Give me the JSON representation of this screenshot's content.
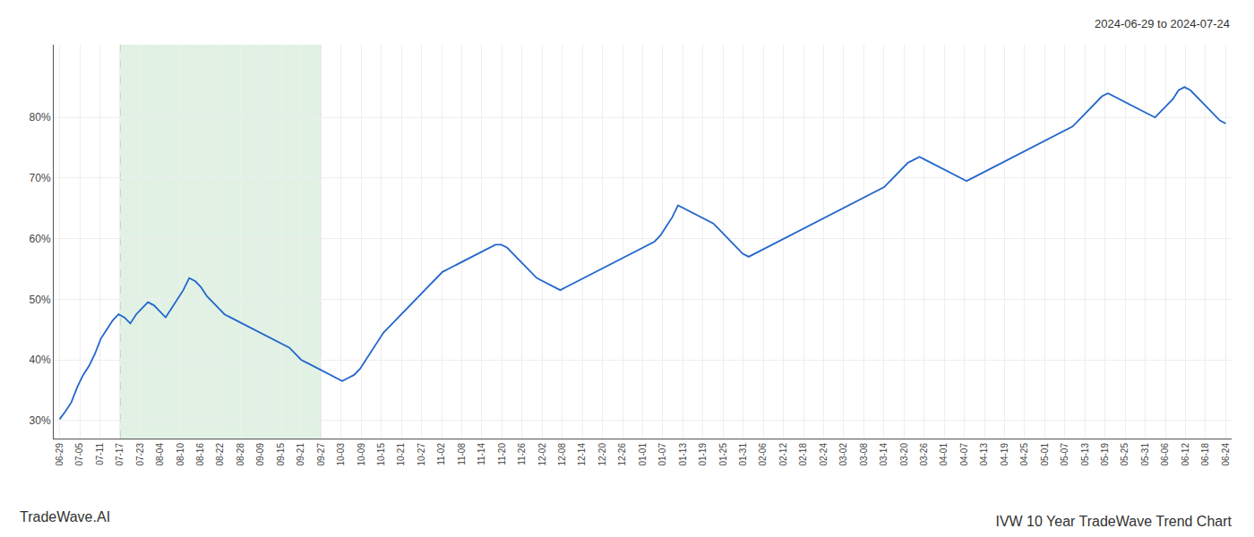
{
  "chart_data": {
    "type": "line",
    "title": "IVW 10 Year TradeWave Trend Chart",
    "subtitle": "2024-06-29 to 2024-07-24",
    "annotations": [
      "TradeWave.AI"
    ],
    "color": "#2266cc",
    "grid": true,
    "highlight": {
      "from": 10.241379,
      "to": 44.37931,
      "color": "#d4edda",
      "line_color": "#90c090"
    },
    "xlim": [
      -1,
      199
    ],
    "xticks": [
      {
        "value": 0,
        "label": "06-29"
      },
      {
        "value": 3.413793,
        "label": "07-05"
      },
      {
        "value": 6.827586,
        "label": "07-11"
      },
      {
        "value": 10.241379,
        "label": "07-17"
      },
      {
        "value": 13.655172,
        "label": "07-23"
      },
      {
        "value": 17.068966,
        "label": "08-04"
      },
      {
        "value": 20.482759,
        "label": "08-10"
      },
      {
        "value": 23.896552,
        "label": "08-16"
      },
      {
        "value": 27.310345,
        "label": "08-22"
      },
      {
        "value": 30.724138,
        "label": "08-28"
      },
      {
        "value": 34.137931,
        "label": "09-09"
      },
      {
        "value": 37.551724,
        "label": "09-15"
      },
      {
        "value": 40.965517,
        "label": "09-21"
      },
      {
        "value": 44.37931,
        "label": "09-27"
      },
      {
        "value": 47.793103,
        "label": "10-03"
      },
      {
        "value": 51.206897,
        "label": "10-09"
      },
      {
        "value": 54.62069,
        "label": "10-15"
      },
      {
        "value": 58.034483,
        "label": "10-21"
      },
      {
        "value": 61.448276,
        "label": "10-27"
      },
      {
        "value": 64.862069,
        "label": "11-02"
      },
      {
        "value": 68.275862,
        "label": "11-08"
      },
      {
        "value": 71.689655,
        "label": "11-14"
      },
      {
        "value": 75.103448,
        "label": "11-20"
      },
      {
        "value": 78.517241,
        "label": "11-26"
      },
      {
        "value": 81.931034,
        "label": "12-02"
      },
      {
        "value": 85.344828,
        "label": "12-08"
      },
      {
        "value": 88.758621,
        "label": "12-14"
      },
      {
        "value": 92.172414,
        "label": "12-20"
      },
      {
        "value": 95.586207,
        "label": "12-26"
      },
      {
        "value": 99,
        "label": "01-01"
      },
      {
        "value": 102.413793,
        "label": "01-07"
      },
      {
        "value": 105.827586,
        "label": "01-13"
      },
      {
        "value": 109.241379,
        "label": "01-19"
      },
      {
        "value": 112.655172,
        "label": "01-25"
      },
      {
        "value": 116.068966,
        "label": "01-31"
      },
      {
        "value": 119.482759,
        "label": "02-06"
      },
      {
        "value": 122.896552,
        "label": "02-12"
      },
      {
        "value": 126.310345,
        "label": "02-18"
      },
      {
        "value": 129.724138,
        "label": "02-24"
      },
      {
        "value": 133.137931,
        "label": "03-02"
      },
      {
        "value": 136.551724,
        "label": "03-08"
      },
      {
        "value": 139.965517,
        "label": "03-14"
      },
      {
        "value": 143.37931,
        "label": "03-20"
      },
      {
        "value": 146.793103,
        "label": "03-26"
      },
      {
        "value": 150.206897,
        "label": "04-01"
      },
      {
        "value": 153.62069,
        "label": "04-07"
      },
      {
        "value": 157.034483,
        "label": "04-13"
      },
      {
        "value": 160.448276,
        "label": "04-19"
      },
      {
        "value": 163.862069,
        "label": "04-25"
      },
      {
        "value": 167.275862,
        "label": "05-01"
      },
      {
        "value": 170.689655,
        "label": "05-07"
      },
      {
        "value": 174.103448,
        "label": "05-13"
      },
      {
        "value": 177.517241,
        "label": "05-19"
      },
      {
        "value": 180.931034,
        "label": "05-25"
      },
      {
        "value": 184.344828,
        "label": "05-31"
      },
      {
        "value": 187.758621,
        "label": "06-06"
      },
      {
        "value": 191.172414,
        "label": "06-12"
      },
      {
        "value": 194.586207,
        "label": "06-18"
      },
      {
        "value": 198,
        "label": "06-24"
      }
    ],
    "ylim": [
      27,
      92
    ],
    "yticks": [
      {
        "value": 30,
        "label": "30%"
      },
      {
        "value": 40,
        "label": "40%"
      },
      {
        "value": 50,
        "label": "50%"
      },
      {
        "value": 60,
        "label": "60%"
      },
      {
        "value": 70,
        "label": "70%"
      },
      {
        "value": 80,
        "label": "80%"
      }
    ],
    "x": [
      0,
      1,
      2,
      3,
      4,
      5,
      6,
      7,
      8,
      9,
      10,
      11,
      12,
      13,
      14,
      15,
      16,
      17,
      18,
      19,
      20,
      21,
      22,
      23,
      24,
      25,
      26,
      27,
      28,
      29,
      30,
      31,
      32,
      33,
      34,
      35,
      36,
      37,
      38,
      39,
      40,
      41,
      42,
      43,
      44,
      45,
      46,
      47,
      48,
      49,
      50,
      51,
      52,
      53,
      54,
      55,
      56,
      57,
      58,
      59,
      60,
      61,
      62,
      63,
      64,
      65,
      66,
      67,
      68,
      69,
      70,
      71,
      72,
      73,
      74,
      75,
      76,
      77,
      78,
      79,
      80,
      81,
      82,
      83,
      84,
      85,
      86,
      87,
      88,
      89,
      90,
      91,
      92,
      93,
      94,
      95,
      96,
      97,
      98,
      99,
      100,
      101,
      102,
      103,
      104,
      105,
      106,
      107,
      108,
      109,
      110,
      111,
      112,
      113,
      114,
      115,
      116,
      117,
      118,
      119,
      120,
      121,
      122,
      123,
      124,
      125,
      126,
      127,
      128,
      129,
      130,
      131,
      132,
      133,
      134,
      135,
      136,
      137,
      138,
      139,
      140,
      141,
      142,
      143,
      144,
      145,
      146,
      147,
      148,
      149,
      150,
      151,
      152,
      153,
      154,
      155,
      156,
      157,
      158,
      159,
      160,
      161,
      162,
      163,
      164,
      165,
      166,
      167,
      168,
      169,
      170,
      171,
      172,
      173,
      174,
      175,
      176,
      177,
      178,
      179,
      180,
      181,
      182,
      183,
      184,
      185,
      186,
      187,
      188,
      189,
      190,
      191,
      192,
      193,
      194,
      195,
      196,
      197,
      198
    ],
    "values": [
      30.2,
      31.5,
      33.0,
      35.5,
      37.5,
      39.0,
      41.0,
      43.5,
      45.0,
      46.5,
      47.5,
      47.0,
      46.0,
      47.5,
      48.5,
      49.5,
      49.0,
      48.0,
      47.0,
      48.5,
      50.0,
      51.5,
      53.5,
      53.0,
      52.0,
      50.5,
      49.5,
      48.5,
      47.5,
      47.0,
      46.5,
      46.0,
      45.5,
      45.0,
      44.5,
      44.0,
      43.5,
      43.0,
      42.5,
      42.0,
      41.0,
      40.0,
      39.5,
      39.0,
      38.5,
      38.0,
      37.5,
      37.0,
      36.5,
      37.0,
      37.5,
      38.5,
      40.0,
      41.5,
      43.0,
      44.5,
      45.5,
      46.5,
      47.5,
      48.5,
      49.5,
      50.5,
      51.5,
      52.5,
      53.5,
      54.5,
      55.0,
      55.5,
      56.0,
      56.5,
      57.0,
      57.5,
      58.0,
      58.5,
      59.0,
      59.0,
      58.5,
      57.5,
      56.5,
      55.5,
      54.5,
      53.5,
      53.0,
      52.5,
      52.0,
      51.5,
      52.0,
      52.5,
      53.0,
      53.5,
      54.0,
      54.5,
      55.0,
      55.5,
      56.0,
      56.5,
      57.0,
      57.5,
      58.0,
      58.5,
      59.0,
      59.5,
      60.5,
      62.0,
      63.5,
      65.5,
      65.0,
      64.5,
      64.0,
      63.5,
      63.0,
      62.5,
      61.5,
      60.5,
      59.5,
      58.5,
      57.5,
      57.0,
      57.5,
      58.0,
      58.5,
      59.0,
      59.5,
      60.0,
      60.5,
      61.0,
      61.5,
      62.0,
      62.5,
      63.0,
      63.5,
      64.0,
      64.5,
      65.0,
      65.5,
      66.0,
      66.5,
      67.0,
      67.5,
      68.0,
      68.5,
      69.5,
      70.5,
      71.5,
      72.5,
      73.0,
      73.5,
      73.0,
      72.5,
      72.0,
      71.5,
      71.0,
      70.5,
      70.0,
      69.5,
      70.0,
      70.5,
      71.0,
      71.5,
      72.0,
      72.5,
      73.0,
      73.5,
      74.0,
      74.5,
      75.0,
      75.5,
      76.0,
      76.5,
      77.0,
      77.5,
      78.0,
      78.5,
      79.5,
      80.5,
      81.5,
      82.5,
      83.5,
      84.0,
      83.5,
      83.0,
      82.5,
      82.0,
      81.5,
      81.0,
      80.5,
      80.0,
      81.0,
      82.0,
      83.0,
      84.5,
      85.0,
      84.5,
      83.5,
      82.5,
      81.5,
      80.5,
      79.5,
      79.0
    ]
  }
}
